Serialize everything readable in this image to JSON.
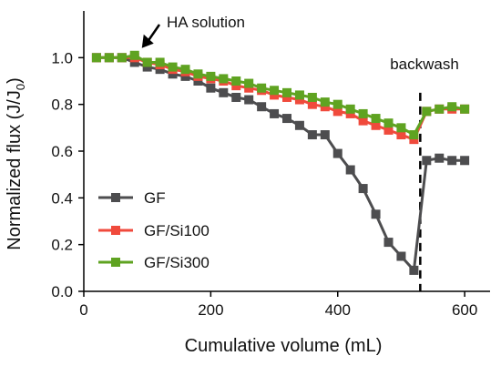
{
  "chart_data": {
    "type": "line",
    "xlabel": "Cumulative volume (mL)",
    "ylabel": {
      "main": "Normalized flux (J/J",
      "subscript": "0",
      "suffix": ")"
    },
    "xlim": [
      0,
      640
    ],
    "ylim": [
      0,
      1.2
    ],
    "x_ticks": [
      0,
      200,
      400,
      600
    ],
    "y_ticks": [
      0.0,
      0.2,
      0.4,
      0.6,
      0.8,
      1.0
    ],
    "y_tick_labels": [
      "0.0",
      "0.2",
      "0.4",
      "0.6",
      "0.8",
      "1.0"
    ],
    "grid": false,
    "legend_position": "lower-left",
    "series": [
      {
        "name": "GF",
        "color": "#4d4d4f",
        "marker": "square",
        "points": [
          [
            20,
            1.0
          ],
          [
            40,
            1.0
          ],
          [
            60,
            1.0
          ],
          [
            80,
            0.98
          ],
          [
            100,
            0.96
          ],
          [
            120,
            0.95
          ],
          [
            140,
            0.93
          ],
          [
            160,
            0.92
          ],
          [
            180,
            0.9
          ],
          [
            200,
            0.87
          ],
          [
            220,
            0.85
          ],
          [
            240,
            0.83
          ],
          [
            260,
            0.82
          ],
          [
            280,
            0.79
          ],
          [
            300,
            0.76
          ],
          [
            320,
            0.74
          ],
          [
            340,
            0.71
          ],
          [
            360,
            0.67
          ],
          [
            380,
            0.67
          ],
          [
            400,
            0.59
          ],
          [
            420,
            0.52
          ],
          [
            440,
            0.44
          ],
          [
            460,
            0.33
          ],
          [
            480,
            0.21
          ],
          [
            500,
            0.15
          ],
          [
            520,
            0.09
          ],
          [
            540,
            0.56
          ],
          [
            560,
            0.57
          ],
          [
            580,
            0.56
          ],
          [
            600,
            0.56
          ]
        ]
      },
      {
        "name": "GF/Si100",
        "color": "#f04a3c",
        "marker": "square",
        "points": [
          [
            20,
            1.0
          ],
          [
            40,
            1.0
          ],
          [
            60,
            1.0
          ],
          [
            80,
            1.0
          ],
          [
            100,
            0.98
          ],
          [
            120,
            0.97
          ],
          [
            140,
            0.95
          ],
          [
            160,
            0.94
          ],
          [
            180,
            0.92
          ],
          [
            200,
            0.91
          ],
          [
            220,
            0.9
          ],
          [
            240,
            0.88
          ],
          [
            260,
            0.87
          ],
          [
            280,
            0.86
          ],
          [
            300,
            0.84
          ],
          [
            320,
            0.83
          ],
          [
            340,
            0.82
          ],
          [
            360,
            0.8
          ],
          [
            380,
            0.79
          ],
          [
            400,
            0.77
          ],
          [
            420,
            0.76
          ],
          [
            440,
            0.73
          ],
          [
            460,
            0.71
          ],
          [
            480,
            0.69
          ],
          [
            500,
            0.67
          ],
          [
            520,
            0.65
          ],
          [
            540,
            0.77
          ],
          [
            560,
            0.78
          ],
          [
            580,
            0.78
          ],
          [
            600,
            0.78
          ]
        ]
      },
      {
        "name": "GF/Si300",
        "color": "#5fa321",
        "marker": "square",
        "points": [
          [
            20,
            1.0
          ],
          [
            40,
            1.0
          ],
          [
            60,
            1.0
          ],
          [
            80,
            1.01
          ],
          [
            100,
            0.98
          ],
          [
            120,
            0.98
          ],
          [
            140,
            0.96
          ],
          [
            160,
            0.95
          ],
          [
            180,
            0.93
          ],
          [
            200,
            0.92
          ],
          [
            220,
            0.91
          ],
          [
            240,
            0.9
          ],
          [
            260,
            0.89
          ],
          [
            280,
            0.87
          ],
          [
            300,
            0.86
          ],
          [
            320,
            0.85
          ],
          [
            340,
            0.84
          ],
          [
            360,
            0.83
          ],
          [
            380,
            0.81
          ],
          [
            400,
            0.8
          ],
          [
            420,
            0.78
          ],
          [
            440,
            0.76
          ],
          [
            460,
            0.74
          ],
          [
            480,
            0.72
          ],
          [
            500,
            0.7
          ],
          [
            520,
            0.67
          ],
          [
            540,
            0.77
          ],
          [
            560,
            0.78
          ],
          [
            580,
            0.79
          ],
          [
            600,
            0.78
          ]
        ]
      }
    ],
    "annotations": {
      "ha_solution": {
        "text": "HA solution",
        "points_to": [
          80,
          1.01
        ]
      },
      "backwash": {
        "text": "backwash",
        "x": 530
      }
    }
  }
}
